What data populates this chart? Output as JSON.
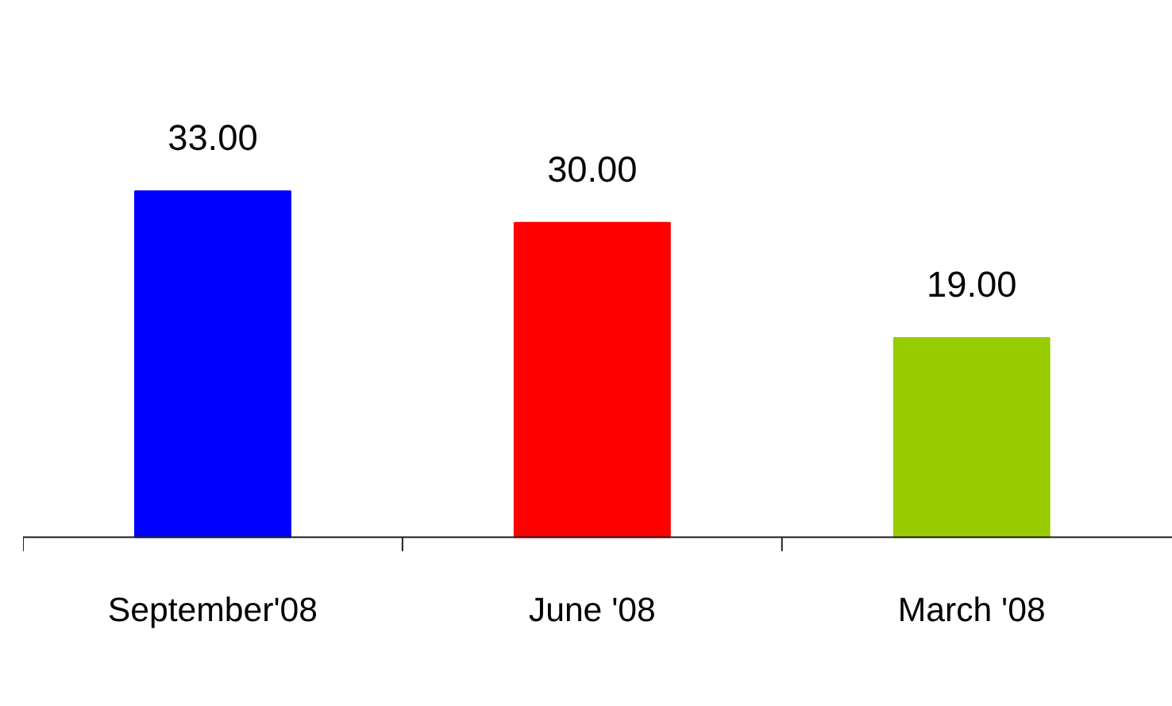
{
  "chart_data": {
    "type": "bar",
    "categories": [
      "September'08",
      "June '08",
      "March '08"
    ],
    "values": [
      33,
      30,
      19
    ],
    "colors": [
      "#0000ff",
      "#ff0000",
      "#99cc00"
    ],
    "value_labels": [
      "33.00",
      "30.00",
      "19.00"
    ]
  }
}
